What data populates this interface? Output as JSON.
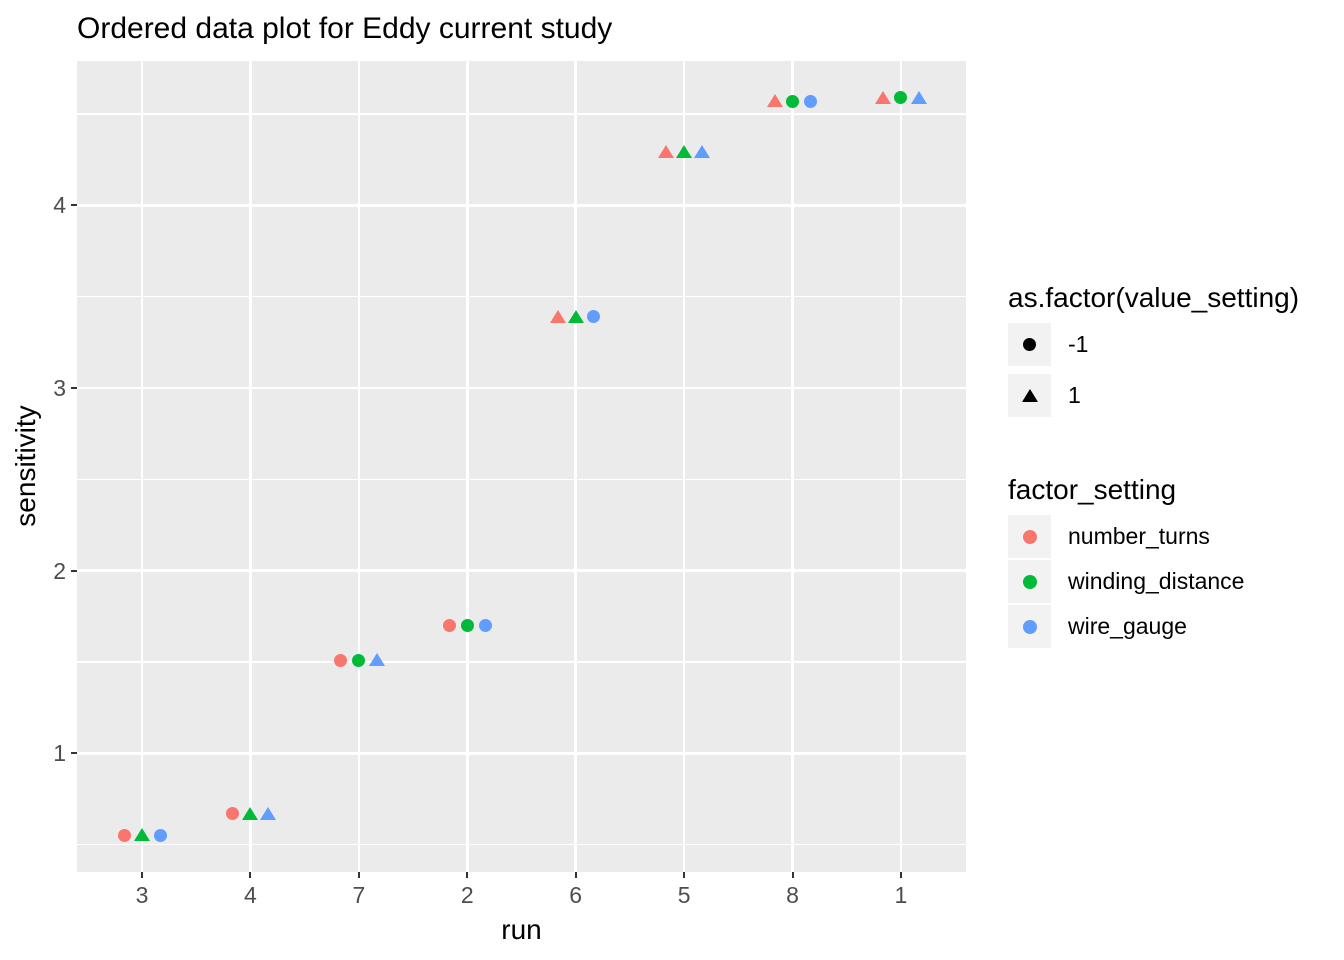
{
  "title": "Ordered data plot for Eddy current study",
  "chart_data": {
    "type": "scatter",
    "title": "Ordered data plot for Eddy current study",
    "xlabel": "run",
    "ylabel": "sensitivity",
    "x_categories": [
      "3",
      "4",
      "7",
      "2",
      "6",
      "5",
      "8",
      "1"
    ],
    "y_ticks": [
      1,
      2,
      3,
      4
    ],
    "y_minor_gridlines": [
      0.5,
      1.5,
      2.5,
      3.5,
      4.5
    ],
    "ylim": [
      0.35,
      4.79
    ],
    "grid": true,
    "legend_position": "right",
    "shape_encoding": {
      "-1": "circle",
      "1": "triangle"
    },
    "factors": [
      {
        "name": "number_turns",
        "color": "#F8766D"
      },
      {
        "name": "winding_distance",
        "color": "#00BA38"
      },
      {
        "name": "wire_gauge",
        "color": "#619CFF"
      }
    ],
    "runs": [
      {
        "run": "3",
        "sensitivity": 0.55,
        "value_settings": {
          "number_turns": -1,
          "winding_distance": 1,
          "wire_gauge": -1
        }
      },
      {
        "run": "4",
        "sensitivity": 0.67,
        "value_settings": {
          "number_turns": -1,
          "winding_distance": 1,
          "wire_gauge": 1
        }
      },
      {
        "run": "7",
        "sensitivity": 1.51,
        "value_settings": {
          "number_turns": -1,
          "winding_distance": -1,
          "wire_gauge": 1
        }
      },
      {
        "run": "2",
        "sensitivity": 1.7,
        "value_settings": {
          "number_turns": -1,
          "winding_distance": -1,
          "wire_gauge": -1
        }
      },
      {
        "run": "6",
        "sensitivity": 3.39,
        "value_settings": {
          "number_turns": 1,
          "winding_distance": 1,
          "wire_gauge": -1
        }
      },
      {
        "run": "5",
        "sensitivity": 4.29,
        "value_settings": {
          "number_turns": 1,
          "winding_distance": 1,
          "wire_gauge": 1
        }
      },
      {
        "run": "8",
        "sensitivity": 4.57,
        "value_settings": {
          "number_turns": 1,
          "winding_distance": -1,
          "wire_gauge": -1
        }
      },
      {
        "run": "1",
        "sensitivity": 4.59,
        "value_settings": {
          "number_turns": 1,
          "winding_distance": -1,
          "wire_gauge": 1
        }
      }
    ]
  },
  "legends": [
    {
      "title": "as.factor(value_setting)",
      "entries": [
        {
          "label": "-1",
          "shape": "circle"
        },
        {
          "label": "1",
          "shape": "triangle"
        }
      ]
    },
    {
      "title": "factor_setting",
      "entries": [
        {
          "label": "number_turns",
          "color": "#F8766D"
        },
        {
          "label": "winding_distance",
          "color": "#00BA38"
        },
        {
          "label": "wire_gauge",
          "color": "#619CFF"
        }
      ]
    }
  ],
  "theme": {
    "panel_background": "#EBEBEB",
    "gridline_color": "#FFFFFF",
    "legend_key_background": "#F2F2F2",
    "tick_label_color": "#4D4D4D",
    "tick_mark_color": "#333333"
  }
}
